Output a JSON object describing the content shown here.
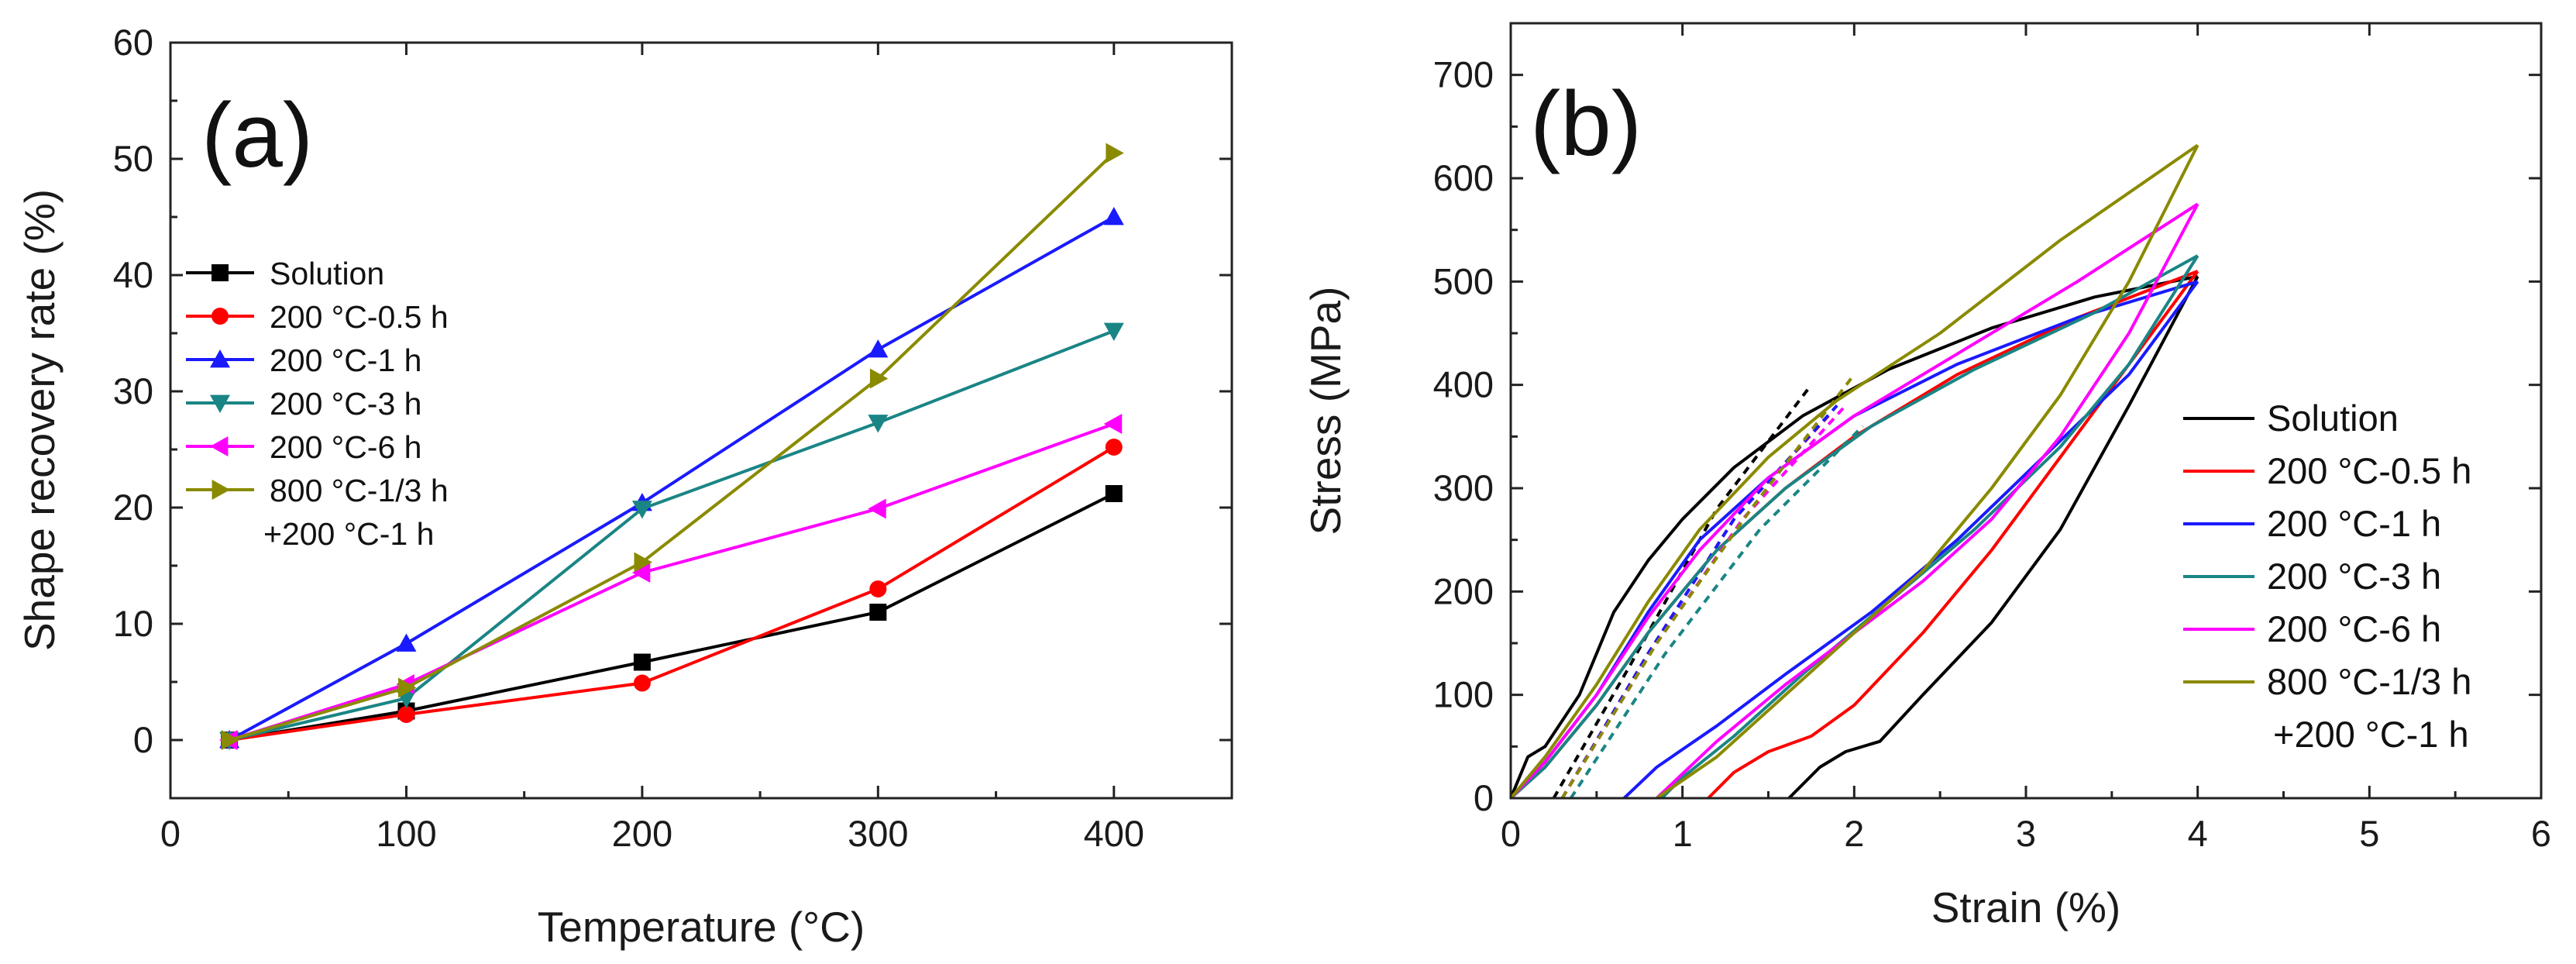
{
  "chart_data": [
    {
      "type": "line",
      "panel_label": "(a)",
      "xlabel": "Temperature (°C)",
      "ylabel": "Shape recovery rate (%)",
      "xlim": [
        0,
        450
      ],
      "ylim": [
        -5,
        60
      ],
      "xticks": [
        0,
        100,
        200,
        300,
        400
      ],
      "yticks": [
        0,
        10,
        20,
        30,
        40,
        50,
        60
      ],
      "legend_position": "left-middle",
      "x": [
        25,
        100,
        200,
        300,
        400
      ],
      "series": [
        {
          "name": "Solution",
          "color": "#000000",
          "marker": "square",
          "values": [
            0,
            2.5,
            6.7,
            11.0,
            21.2
          ]
        },
        {
          "name": "200 °C-0.5 h",
          "color": "#ff0000",
          "marker": "circle",
          "values": [
            0,
            2.2,
            4.9,
            13.0,
            25.2
          ]
        },
        {
          "name": "200 °C-1 h",
          "color": "#1a1aff",
          "marker": "triangle-up",
          "values": [
            0,
            8.3,
            20.4,
            33.6,
            45.0
          ]
        },
        {
          "name": "200 °C-3 h",
          "color": "#1a8585",
          "marker": "triangle-down",
          "values": [
            0,
            3.6,
            19.9,
            27.3,
            35.2
          ]
        },
        {
          "name": "200 °C-6 h",
          "color": "#ff00ff",
          "marker": "triangle-left",
          "values": [
            0,
            4.8,
            14.4,
            19.9,
            27.2
          ]
        },
        {
          "name": "800 °C-1/3 h",
          "name_line2": "+200 °C-1 h",
          "color": "#8a8a00",
          "marker": "triangle-right",
          "values": [
            0,
            4.5,
            15.3,
            31.1,
            50.5
          ]
        }
      ]
    },
    {
      "type": "line",
      "panel_label": "(b)",
      "xlabel": "Strain (%)",
      "ylabel": "Stress (MPa)",
      "xlim": [
        0,
        6
      ],
      "ylim": [
        0,
        750
      ],
      "xticks": [
        0,
        1,
        2,
        3,
        4,
        5,
        6
      ],
      "yticks": [
        0,
        100,
        200,
        300,
        400,
        500,
        600,
        700
      ],
      "legend_position": "right-middle",
      "series": [
        {
          "name": "Solution",
          "color": "#000000",
          "loading": [
            [
              0,
              0
            ],
            [
              0.1,
              40
            ],
            [
              0.2,
              50
            ],
            [
              0.4,
              100
            ],
            [
              0.6,
              180
            ],
            [
              0.8,
              230
            ],
            [
              1.0,
              270
            ],
            [
              1.3,
              320
            ],
            [
              1.7,
              370
            ],
            [
              2.2,
              415
            ],
            [
              2.8,
              455
            ],
            [
              3.4,
              485
            ],
            [
              4.0,
              505
            ]
          ],
          "unloading": [
            [
              4.0,
              505
            ],
            [
              3.6,
              380
            ],
            [
              3.2,
              260
            ],
            [
              2.8,
              170
            ],
            [
              2.4,
              100
            ],
            [
              2.15,
              55
            ],
            [
              1.95,
              45
            ],
            [
              1.8,
              30
            ],
            [
              1.62,
              0
            ]
          ],
          "dashed": [
            [
              0.25,
              0
            ],
            [
              0.7,
              130
            ],
            [
              1.2,
              280
            ],
            [
              1.75,
              400
            ]
          ]
        },
        {
          "name": "200 °C-0.5 h",
          "color": "#ff0000",
          "loading": [
            [
              0,
              0
            ],
            [
              0.2,
              30
            ],
            [
              0.5,
              90
            ],
            [
              0.8,
              160
            ],
            [
              1.2,
              240
            ],
            [
              1.6,
              300
            ],
            [
              2.0,
              350
            ],
            [
              2.6,
              410
            ],
            [
              3.3,
              465
            ],
            [
              4.0,
              510
            ]
          ],
          "unloading": [
            [
              4.0,
              510
            ],
            [
              3.6,
              420
            ],
            [
              3.2,
              330
            ],
            [
              2.8,
              240
            ],
            [
              2.4,
              160
            ],
            [
              2.0,
              90
            ],
            [
              1.75,
              60
            ],
            [
              1.5,
              45
            ],
            [
              1.3,
              25
            ],
            [
              1.15,
              0
            ]
          ],
          "dashed": [
            [
              0.3,
              0
            ],
            [
              0.8,
              140
            ],
            [
              1.3,
              270
            ],
            [
              1.85,
              370
            ]
          ]
        },
        {
          "name": "200 °C-1 h",
          "color": "#1a1aff",
          "loading": [
            [
              0,
              0
            ],
            [
              0.2,
              35
            ],
            [
              0.5,
              100
            ],
            [
              0.8,
              180
            ],
            [
              1.1,
              250
            ],
            [
              1.5,
              310
            ],
            [
              2.0,
              370
            ],
            [
              2.6,
              420
            ],
            [
              3.3,
              465
            ],
            [
              4.0,
              500
            ]
          ],
          "unloading": [
            [
              4.0,
              500
            ],
            [
              3.6,
              410
            ],
            [
              3.1,
              330
            ],
            [
              2.6,
              250
            ],
            [
              2.1,
              180
            ],
            [
              1.6,
              120
            ],
            [
              1.2,
              70
            ],
            [
              0.85,
              30
            ],
            [
              0.66,
              0
            ]
          ],
          "dashed": [
            [
              0.3,
              0
            ],
            [
              0.8,
              140
            ],
            [
              1.3,
              270
            ],
            [
              1.9,
              380
            ]
          ]
        },
        {
          "name": "200 °C-3 h",
          "color": "#1a8585",
          "loading": [
            [
              0,
              0
            ],
            [
              0.2,
              30
            ],
            [
              0.5,
              90
            ],
            [
              0.8,
              160
            ],
            [
              1.2,
              240
            ],
            [
              1.6,
              300
            ],
            [
              2.1,
              360
            ],
            [
              2.7,
              415
            ],
            [
              3.4,
              470
            ],
            [
              4.0,
              525
            ]
          ],
          "unloading": [
            [
              4.0,
              525
            ],
            [
              3.6,
              420
            ],
            [
              3.2,
              340
            ],
            [
              2.7,
              260
            ],
            [
              2.2,
              190
            ],
            [
              1.7,
              120
            ],
            [
              1.3,
              60
            ],
            [
              1.0,
              20
            ],
            [
              0.88,
              0
            ]
          ],
          "dashed": [
            [
              0.35,
              0
            ],
            [
              0.9,
              140
            ],
            [
              1.45,
              260
            ],
            [
              2.05,
              360
            ]
          ]
        },
        {
          "name": "200 °C-6 h",
          "color": "#ff00ff",
          "loading": [
            [
              0,
              0
            ],
            [
              0.2,
              35
            ],
            [
              0.5,
              100
            ],
            [
              0.8,
              175
            ],
            [
              1.1,
              240
            ],
            [
              1.5,
              310
            ],
            [
              2.0,
              370
            ],
            [
              2.6,
              430
            ],
            [
              3.3,
              500
            ],
            [
              4.0,
              575
            ]
          ],
          "unloading": [
            [
              4.0,
              575
            ],
            [
              3.6,
              450
            ],
            [
              3.2,
              350
            ],
            [
              2.8,
              270
            ],
            [
              2.4,
              210
            ],
            [
              2.0,
              160
            ],
            [
              1.6,
              110
            ],
            [
              1.2,
              55
            ],
            [
              0.85,
              0
            ]
          ],
          "dashed": [
            [
              0.3,
              0
            ],
            [
              0.85,
              150
            ],
            [
              1.35,
              270
            ],
            [
              1.95,
              380
            ]
          ]
        },
        {
          "name": "800 °C-1/3 h",
          "name_line2": "+200 °C-1 h",
          "color": "#8a8a00",
          "loading": [
            [
              0,
              0
            ],
            [
              0.2,
              40
            ],
            [
              0.5,
              110
            ],
            [
              0.8,
              190
            ],
            [
              1.1,
              260
            ],
            [
              1.5,
              330
            ],
            [
              1.9,
              385
            ],
            [
              2.5,
              450
            ],
            [
              3.2,
              540
            ],
            [
              4.0,
              632
            ]
          ],
          "unloading": [
            [
              4.0,
              632
            ],
            [
              3.6,
              500
            ],
            [
              3.2,
              390
            ],
            [
              2.8,
              300
            ],
            [
              2.4,
              220
            ],
            [
              2.0,
              160
            ],
            [
              1.6,
              100
            ],
            [
              1.2,
              40
            ],
            [
              0.85,
              0
            ]
          ],
          "dashed": [
            [
              0.3,
              0
            ],
            [
              0.85,
              150
            ],
            [
              1.4,
              280
            ],
            [
              2.0,
              410
            ]
          ]
        }
      ]
    }
  ]
}
